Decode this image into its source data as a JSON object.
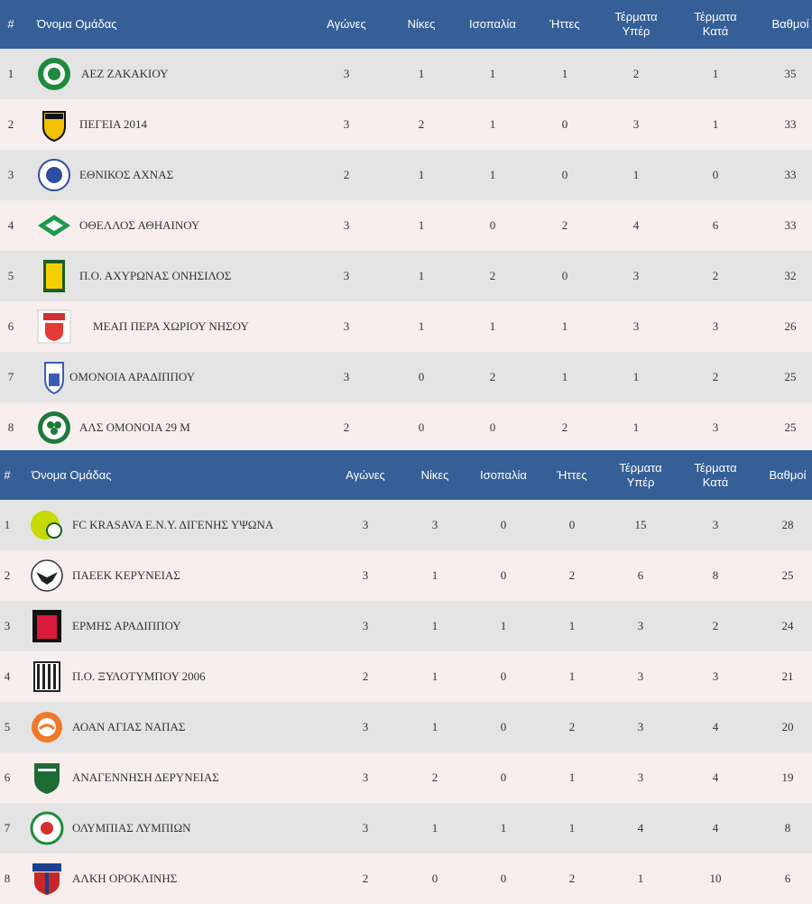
{
  "tables": [
    {
      "headers": {
        "rank": "#",
        "team": "Όνομα Ομάδας",
        "played": "Αγώνες",
        "wins": "Νίκες",
        "draws": "Ισοπαλία",
        "losses": "Ήττες",
        "gf": "Τέρματα Υπέρ",
        "ga": "Τέρματα Κατά",
        "points": "Βαθμοί"
      },
      "rows": [
        {
          "rank": "1",
          "team": "ΑΕΖ ΖΑΚΑΚΙΟΥ",
          "played": "3",
          "wins": "1",
          "draws": "1",
          "losses": "1",
          "gf": "2",
          "ga": "1",
          "points": "35",
          "logo": "crest-green-circle"
        },
        {
          "rank": "2",
          "team": "ΠΕΓΕΙΑ 2014",
          "played": "3",
          "wins": "2",
          "draws": "1",
          "losses": "0",
          "gf": "3",
          "ga": "1",
          "points": "33",
          "logo": "crest-yellow-black-shield"
        },
        {
          "rank": "3",
          "team": "ΕΘΝΙΚΟΣ ΑΧΝΑΣ",
          "played": "2",
          "wins": "1",
          "draws": "1",
          "losses": "0",
          "gf": "1",
          "ga": "0",
          "points": "33",
          "logo": "crest-blue-circle"
        },
        {
          "rank": "4",
          "team": "ΟΘΕΛΛΟΣ ΑΘΗΑΙΝΟΥ",
          "played": "3",
          "wins": "1",
          "draws": "0",
          "losses": "2",
          "gf": "4",
          "ga": "6",
          "points": "33",
          "logo": "crest-green-diamond"
        },
        {
          "rank": "5",
          "team": "Π.Ο. ΑΧΥΡΩΝΑΣ ΟΝΗΣΙΛΟΣ",
          "played": "3",
          "wins": "1",
          "draws": "2",
          "losses": "0",
          "gf": "3",
          "ga": "2",
          "points": "32",
          "logo": "crest-yellow-green-shield"
        },
        {
          "rank": "6",
          "team": "ΜΕΑΠ ΠΕΡΑ ΧΩΡΙΟΥ ΝΗΣΟΥ",
          "played": "3",
          "wins": "1",
          "draws": "1",
          "losses": "1",
          "gf": "3",
          "ga": "3",
          "points": "26",
          "logo": "crest-red-white"
        },
        {
          "rank": "7",
          "team": "ΟΜΟΝΟΙΑ ΑΡΑΔΙΠΠΟΥ",
          "played": "3",
          "wins": "0",
          "draws": "2",
          "losses": "1",
          "gf": "1",
          "ga": "2",
          "points": "25",
          "logo": "crest-blue-shield"
        },
        {
          "rank": "8",
          "team": "ΑΛΣ ΟΜΟΝΟΙΑ 29 Μ",
          "played": "2",
          "wins": "0",
          "draws": "0",
          "losses": "2",
          "gf": "1",
          "ga": "3",
          "points": "25",
          "logo": "crest-green-clover"
        }
      ]
    },
    {
      "headers": {
        "rank": "#",
        "team": "Όνομα Ομάδας",
        "played": "Αγώνες",
        "wins": "Νίκες",
        "draws": "Ισοπαλία",
        "losses": "Ήττες",
        "gf": "Τέρματα Υπέρ",
        "ga": "Τέρματα Κατά",
        "points": "Βαθμοί"
      },
      "rows": [
        {
          "rank": "1",
          "team": "FC KRASAVA Ε.Ν.Υ. ΔΙΓΕΝΗΣ ΥΨΩΝΑ",
          "played": "3",
          "wins": "3",
          "draws": "0",
          "losses": "0",
          "gf": "15",
          "ga": "3",
          "points": "28",
          "logo": "crest-yellow-green-ball"
        },
        {
          "rank": "2",
          "team": "ΠΑΕΕΚ ΚΕΡΥΝΕΙΑΣ",
          "played": "3",
          "wins": "1",
          "draws": "0",
          "losses": "2",
          "gf": "6",
          "ga": "8",
          "points": "25",
          "logo": "crest-black-eagle"
        },
        {
          "rank": "3",
          "team": "ΕΡΜΗΣ ΑΡΑΔΙΠΠΟΥ",
          "played": "3",
          "wins": "1",
          "draws": "1",
          "losses": "1",
          "gf": "3",
          "ga": "2",
          "points": "24",
          "logo": "crest-red-black-shield"
        },
        {
          "rank": "4",
          "team": "Π.Ο. ΞΥΛΟΤΥΜΠΟΥ 2006",
          "played": "2",
          "wins": "1",
          "draws": "0",
          "losses": "1",
          "gf": "3",
          "ga": "3",
          "points": "21",
          "logo": "crest-black-white-stripes"
        },
        {
          "rank": "5",
          "team": "ΑΟΑΝ ΑΓΙΑΣ ΝΑΠΑΣ",
          "played": "3",
          "wins": "1",
          "draws": "0",
          "losses": "2",
          "gf": "3",
          "ga": "4",
          "points": "20",
          "logo": "crest-orange-circle"
        },
        {
          "rank": "6",
          "team": "ΑΝΑΓΕΝΝΗΣΗ ΔΕΡΥΝΕΙΑΣ",
          "played": "3",
          "wins": "2",
          "draws": "0",
          "losses": "1",
          "gf": "3",
          "ga": "4",
          "points": "19",
          "logo": "crest-green-shield"
        },
        {
          "rank": "7",
          "team": "ΟΛΥΜΠΙΑΣ ΛΥΜΠΙΩΝ",
          "played": "3",
          "wins": "1",
          "draws": "1",
          "losses": "1",
          "gf": "4",
          "ga": "4",
          "points": "8",
          "logo": "crest-green-red-circle"
        },
        {
          "rank": "8",
          "team": "ΑΛΚΗ ΟΡΟΚΛΙΝΗΣ",
          "played": "2",
          "wins": "0",
          "draws": "0",
          "losses": "2",
          "gf": "1",
          "ga": "10",
          "points": "6",
          "logo": "crest-blue-red-shield"
        }
      ]
    }
  ]
}
